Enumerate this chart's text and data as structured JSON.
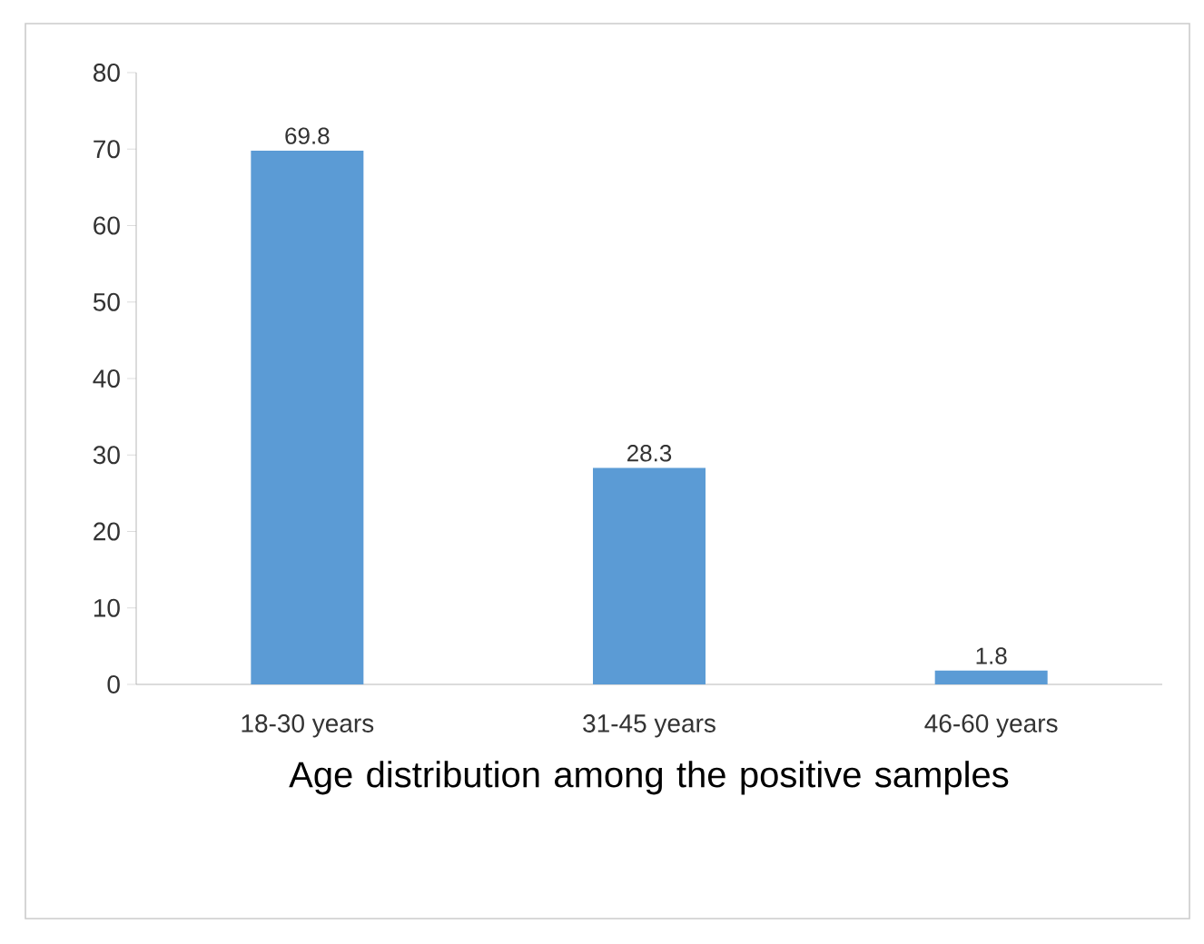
{
  "chart_data": {
    "type": "bar",
    "xlabel": "Age distribution among the positive samples",
    "categories": [
      "18-30 years",
      "31-45 years",
      "46-60 years"
    ],
    "values": [
      69.8,
      28.3,
      1.8
    ],
    "color": "#5b9bd5",
    "ylim": [
      0,
      80
    ],
    "yticks": [
      0,
      10,
      20,
      30,
      40,
      50,
      60,
      70,
      80
    ],
    "data_labels": true,
    "grid": false
  }
}
